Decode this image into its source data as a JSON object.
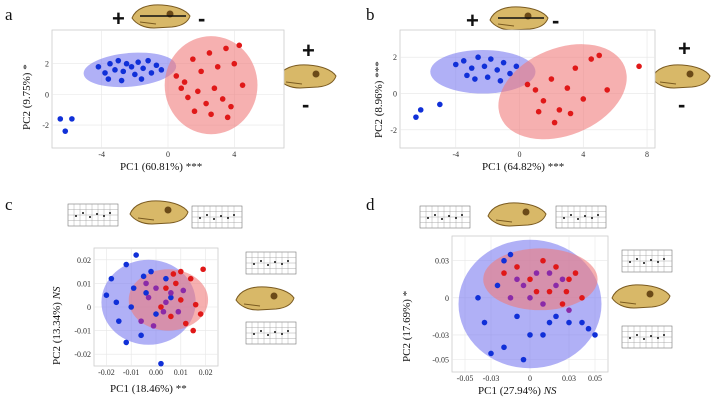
{
  "figure": {
    "panels": [
      {
        "id": "a",
        "label": "a",
        "xlabel": "PC1 (60.81%)",
        "xsig": "***",
        "ylabel": "PC2 (9.75%)",
        "ysig": "*",
        "plus": "+",
        "minus": "-",
        "xticks": [
          "-4",
          "0",
          "4"
        ],
        "yticks": [
          "2",
          "0",
          "-2"
        ]
      },
      {
        "id": "b",
        "label": "b",
        "xlabel": "PC1 (64.82%)",
        "xsig": "***",
        "ylabel": "PC2 (8.96%)",
        "ysig": "***",
        "plus": "+",
        "minus": "-",
        "xticks": [
          "-4",
          "0",
          "4",
          "8"
        ],
        "yticks": [
          "2",
          "0",
          "-2"
        ]
      },
      {
        "id": "c",
        "label": "c",
        "xlabel": "PC1 (18.46%)",
        "xsig": "**",
        "ylabel": "PC2 (13.34%)",
        "ysig": "NS",
        "xticks": [
          "-0.02",
          "-0.01",
          "0.00",
          "0.01",
          "0.02"
        ],
        "yticks": [
          "0.02",
          "0.01",
          "0",
          "-0.01",
          "-0.02"
        ]
      },
      {
        "id": "d",
        "label": "d",
        "xlabel": "PC1 (27.94%)",
        "xsig": "NS",
        "ylabel": "PC2 (17.69%)",
        "ysig": "*",
        "xticks": [
          "-0.05",
          "-0.03",
          "0",
          "0.03",
          "0.05"
        ],
        "yticks": [
          "0.03",
          "0",
          "-0.03",
          "-0.05"
        ]
      }
    ],
    "colors": {
      "group1": "#1030d8",
      "group2": "#e01818",
      "ellipse1": "#7b7bf0",
      "ellipse2": "#f07b7b",
      "mixed": "#8a2aa8"
    },
    "icons": [
      "skull-icon",
      "deformation-grid-icon",
      "double-arrow-icon"
    ]
  },
  "chart_data": [
    {
      "type": "scatter",
      "panel": "a",
      "xlim": [
        -7,
        7
      ],
      "ylim": [
        -3.5,
        4.2
      ],
      "series": [
        {
          "name": "group-blue",
          "points": [
            [
              -6.5,
              -1.6
            ],
            [
              -6.2,
              -2.4
            ],
            [
              -5.8,
              -1.6
            ],
            [
              -4.2,
              1.8
            ],
            [
              -3.8,
              1.4
            ],
            [
              -3.5,
              2
            ],
            [
              -3.2,
              1.6
            ],
            [
              -3,
              2.2
            ],
            [
              -2.7,
              1.5
            ],
            [
              -2.5,
              2
            ],
            [
              -2.2,
              1.8
            ],
            [
              -2,
              1.3
            ],
            [
              -1.8,
              2.1
            ],
            [
              -1.5,
              1.7
            ],
            [
              -1.2,
              2.2
            ],
            [
              -1,
              1.4
            ],
            [
              -0.7,
              1.9
            ],
            [
              -0.4,
              1.6
            ],
            [
              -3.6,
              1
            ],
            [
              -2.8,
              0.9
            ],
            [
              -1.6,
              1
            ]
          ]
        },
        {
          "name": "group-red",
          "points": [
            [
              0.5,
              1.2
            ],
            [
              1,
              0.8
            ],
            [
              1.5,
              2.3
            ],
            [
              2,
              1.5
            ],
            [
              2.5,
              2.7
            ],
            [
              3,
              1.8
            ],
            [
              3.5,
              3
            ],
            [
              4,
              2
            ],
            [
              4.3,
              3.2
            ],
            [
              1.2,
              -0.2
            ],
            [
              1.8,
              0.2
            ],
            [
              2.3,
              -0.6
            ],
            [
              2.8,
              0.4
            ],
            [
              3.3,
              -0.3
            ],
            [
              3.8,
              -0.8
            ],
            [
              4.5,
              0.6
            ],
            [
              1.6,
              -1.1
            ],
            [
              2.6,
              -1.3
            ],
            [
              3.6,
              -1.5
            ],
            [
              0.8,
              0.4
            ]
          ]
        }
      ],
      "ellipses": [
        {
          "group": "blue",
          "cx": -2.3,
          "cy": 1.6,
          "rx": 2.8,
          "ry": 1.1,
          "angle": -5
        },
        {
          "group": "red",
          "cx": 2.6,
          "cy": 0.6,
          "rx": 2.8,
          "ry": 3.2,
          "angle": 0
        }
      ]
    },
    {
      "type": "scatter",
      "panel": "b",
      "xlim": [
        -7.5,
        8.5
      ],
      "ylim": [
        -3,
        3.5
      ],
      "series": [
        {
          "name": "group-blue",
          "points": [
            [
              -6.5,
              -1.3
            ],
            [
              -6.2,
              -0.9
            ],
            [
              -5,
              -0.6
            ],
            [
              -4,
              1.6
            ],
            [
              -3.5,
              1.8
            ],
            [
              -3,
              1.4
            ],
            [
              -2.6,
              2
            ],
            [
              -2.2,
              1.5
            ],
            [
              -1.8,
              1.9
            ],
            [
              -1.4,
              1.3
            ],
            [
              -1,
              1.7
            ],
            [
              -0.6,
              1.1
            ],
            [
              -2.8,
              0.8
            ],
            [
              -2,
              0.9
            ],
            [
              -1.2,
              0.7
            ],
            [
              -3.3,
              1
            ],
            [
              -0.2,
              1.5
            ]
          ]
        },
        {
          "name": "group-red",
          "points": [
            [
              0.5,
              0.5
            ],
            [
              1,
              0.2
            ],
            [
              1.5,
              -0.4
            ],
            [
              2,
              0.8
            ],
            [
              2.5,
              -0.9
            ],
            [
              3,
              0.3
            ],
            [
              3.5,
              1.4
            ],
            [
              4,
              -0.3
            ],
            [
              4.5,
              1.9
            ],
            [
              5,
              2.1
            ],
            [
              5.5,
              0.2
            ],
            [
              1.2,
              -1
            ],
            [
              2.2,
              -1.6
            ],
            [
              3.2,
              -1.1
            ],
            [
              7.5,
              1.5
            ]
          ]
        }
      ],
      "ellipses": [
        {
          "group": "blue",
          "cx": -2.3,
          "cy": 1.2,
          "rx": 3.3,
          "ry": 1.2,
          "angle": 0
        },
        {
          "group": "red",
          "cx": 2.7,
          "cy": 0.1,
          "rx": 4.2,
          "ry": 2.4,
          "angle": -22
        }
      ]
    },
    {
      "type": "scatter",
      "panel": "c",
      "xlim": [
        -0.025,
        0.025
      ],
      "ylim": [
        -0.025,
        0.025
      ],
      "series": [
        {
          "name": "group-blue",
          "points": [
            [
              -0.02,
              0.005
            ],
            [
              -0.018,
              0.012
            ],
            [
              -0.015,
              -0.006
            ],
            [
              -0.012,
              0.018
            ],
            [
              -0.01,
              0
            ],
            [
              -0.008,
              0.022
            ],
            [
              -0.006,
              -0.012
            ],
            [
              -0.004,
              0.006
            ],
            [
              -0.002,
              0.015
            ],
            [
              0,
              -0.003
            ],
            [
              0.002,
              -0.024
            ],
            [
              -0.016,
              0.002
            ],
            [
              -0.009,
              0.008
            ],
            [
              -0.012,
              -0.015
            ],
            [
              0.004,
              0.012
            ],
            [
              0.006,
              0.004
            ],
            [
              -0.005,
              0.013
            ]
          ]
        },
        {
          "name": "group-red",
          "points": [
            [
              0.002,
              0
            ],
            [
              0.004,
              0.008
            ],
            [
              0.006,
              -0.004
            ],
            [
              0.008,
              0.01
            ],
            [
              0.01,
              0.003
            ],
            [
              0.012,
              -0.007
            ],
            [
              0.014,
              0.012
            ],
            [
              0.016,
              0.001
            ],
            [
              0.018,
              -0.003
            ],
            [
              0.019,
              0.016
            ],
            [
              0.01,
              0.015
            ],
            [
              0.015,
              -0.01
            ],
            [
              0.007,
              0.014
            ]
          ]
        },
        {
          "name": "overlap",
          "points": [
            [
              -0.003,
              0.004
            ],
            [
              0,
              0.008
            ],
            [
              0.003,
              -0.002
            ],
            [
              0.006,
              0.006
            ],
            [
              -0.006,
              -0.006
            ],
            [
              0.009,
              -0.002
            ],
            [
              -0.001,
              -0.008
            ],
            [
              0.011,
              0.007
            ],
            [
              -0.004,
              0.01
            ],
            [
              0.004,
              0.002
            ]
          ]
        }
      ],
      "ellipses": [
        {
          "group": "blue",
          "cx": -0.003,
          "cy": 0.002,
          "rx": 0.019,
          "ry": 0.018,
          "angle": 0
        },
        {
          "group": "red",
          "cx": 0.005,
          "cy": 0.003,
          "rx": 0.016,
          "ry": 0.013,
          "angle": 0
        }
      ]
    },
    {
      "type": "scatter",
      "panel": "d",
      "xlim": [
        -0.06,
        0.06
      ],
      "ylim": [
        -0.06,
        0.05
      ],
      "series": [
        {
          "name": "group-blue",
          "points": [
            [
              -0.04,
              0
            ],
            [
              -0.035,
              -0.02
            ],
            [
              -0.03,
              -0.045
            ],
            [
              -0.025,
              0.01
            ],
            [
              -0.02,
              -0.04
            ],
            [
              -0.015,
              0.035
            ],
            [
              -0.01,
              -0.015
            ],
            [
              -0.005,
              -0.05
            ],
            [
              0,
              -0.03
            ],
            [
              0.01,
              -0.03
            ],
            [
              0.02,
              -0.015
            ],
            [
              0.03,
              -0.02
            ],
            [
              0.04,
              -0.02
            ],
            [
              0.045,
              -0.025
            ],
            [
              0.05,
              -0.03
            ],
            [
              -0.02,
              0.03
            ],
            [
              0.015,
              -0.02
            ]
          ]
        },
        {
          "name": "group-red",
          "points": [
            [
              -0.02,
              0.02
            ],
            [
              -0.01,
              0.025
            ],
            [
              0,
              0.015
            ],
            [
              0.01,
              0.03
            ],
            [
              0.015,
              0.005
            ],
            [
              0.02,
              0.025
            ],
            [
              0.025,
              -0.005
            ],
            [
              0.03,
              0.015
            ],
            [
              0.035,
              0.02
            ],
            [
              0.04,
              0
            ],
            [
              0.005,
              0.005
            ],
            [
              0.028,
              0.005
            ]
          ]
        },
        {
          "name": "overlap",
          "points": [
            [
              -0.015,
              0
            ],
            [
              -0.005,
              0.01
            ],
            [
              0.005,
              0.02
            ],
            [
              0.01,
              -0.005
            ],
            [
              0.02,
              0.01
            ],
            [
              -0.01,
              0.015
            ],
            [
              0,
              0
            ],
            [
              0.015,
              0.02
            ],
            [
              0.025,
              0.015
            ],
            [
              0.03,
              -0.01
            ]
          ]
        }
      ],
      "ellipses": [
        {
          "group": "blue",
          "cx": 0.0,
          "cy": -0.005,
          "rx": 0.055,
          "ry": 0.052,
          "angle": 0
        },
        {
          "group": "red",
          "cx": 0.008,
          "cy": 0.015,
          "rx": 0.044,
          "ry": 0.025,
          "angle": 0
        }
      ]
    }
  ]
}
